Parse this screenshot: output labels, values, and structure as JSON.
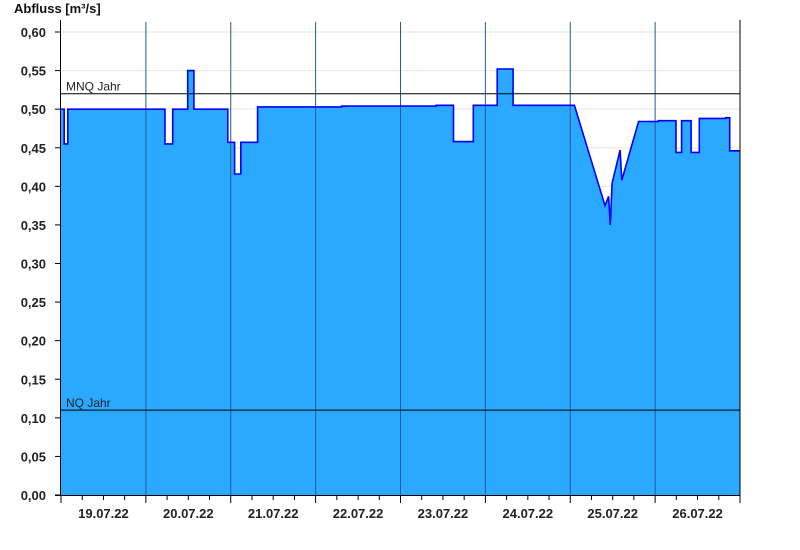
{
  "chart_data": {
    "type": "area",
    "title": "",
    "ylabel": "Abfluss [m³/s]",
    "xlabel": "",
    "ylim": [
      0,
      0.6
    ],
    "xlim": [
      "19.07.22 00:00",
      "27.07.22 00:00"
    ],
    "yticks": [
      "0,00",
      "0,05",
      "0,10",
      "0,15",
      "0,20",
      "0,25",
      "0,30",
      "0,35",
      "0,40",
      "0,45",
      "0,50",
      "0,55",
      "0,60"
    ],
    "xticks": [
      "19.07.22",
      "20.07.22",
      "21.07.22",
      "22.07.22",
      "23.07.22",
      "24.07.22",
      "25.07.22",
      "26.07.22"
    ],
    "grid": true,
    "colors": {
      "fill": "#2ba8ff",
      "line": "#0000ff",
      "day_lines": "#1f5f8f",
      "reference": "#000000",
      "grid": "#e6e6e6"
    },
    "reference_lines": [
      {
        "label": "MNQ Jahr",
        "value": 0.52
      },
      {
        "label": "NQ Jahr",
        "value": 0.11
      }
    ],
    "series": [
      {
        "points": [
          [
            "19.07.22 00:00",
            0.5
          ],
          [
            "19.07.22 00:55",
            0.5
          ],
          [
            "19.07.22 00:55",
            0.455
          ],
          [
            "19.07.22 01:55",
            0.455
          ],
          [
            "19.07.22 01:55",
            0.5
          ],
          [
            "20.07.22 05:25",
            0.5
          ],
          [
            "20.07.22 05:25",
            0.455
          ],
          [
            "20.07.22 07:35",
            0.455
          ],
          [
            "20.07.22 07:35",
            0.5
          ],
          [
            "20.07.22 11:50",
            0.5
          ],
          [
            "20.07.22 11:50",
            0.55
          ],
          [
            "20.07.22 13:35",
            0.55
          ],
          [
            "20.07.22 13:35",
            0.5
          ],
          [
            "20.07.22 23:10",
            0.5
          ],
          [
            "20.07.22 23:10",
            0.457
          ],
          [
            "21.07.22 01:05",
            0.457
          ],
          [
            "21.07.22 01:05",
            0.416
          ],
          [
            "21.07.22 02:50",
            0.416
          ],
          [
            "21.07.22 02:50",
            0.457
          ],
          [
            "21.07.22 07:35",
            0.457
          ],
          [
            "21.07.22 07:35",
            0.503
          ],
          [
            "22.07.22 07:20",
            0.503
          ],
          [
            "22.07.22 07:20",
            0.504
          ],
          [
            "23.07.22 10:05",
            0.504
          ],
          [
            "23.07.22 10:05",
            0.505
          ],
          [
            "23.07.22 15:00",
            0.505
          ],
          [
            "23.07.22 15:00",
            0.458
          ],
          [
            "23.07.22 20:35",
            0.458
          ],
          [
            "23.07.22 20:35",
            0.505
          ],
          [
            "24.07.22 03:20",
            0.505
          ],
          [
            "24.07.22 03:20",
            0.552
          ],
          [
            "24.07.22 07:50",
            0.552
          ],
          [
            "24.07.22 07:50",
            0.505
          ],
          [
            "25.07.22 01:10",
            0.505
          ],
          [
            "25.07.22 09:50",
            0.375
          ],
          [
            "25.07.22 10:50",
            0.387
          ],
          [
            "25.07.22 11:20",
            0.35
          ],
          [
            "25.07.22 11:50",
            0.404
          ],
          [
            "25.07.22 14:05",
            0.447
          ],
          [
            "25.07.22 14:35",
            0.408
          ],
          [
            "25.07.22 19:20",
            0.484
          ],
          [
            "26.07.22 00:55",
            0.484
          ],
          [
            "26.07.22 00:55",
            0.485
          ],
          [
            "26.07.22 05:55",
            0.485
          ],
          [
            "26.07.22 05:55",
            0.444
          ],
          [
            "26.07.22 07:30",
            0.444
          ],
          [
            "26.07.22 07:30",
            0.485
          ],
          [
            "26.07.22 10:10",
            0.485
          ],
          [
            "26.07.22 10:10",
            0.444
          ],
          [
            "26.07.22 12:30",
            0.444
          ],
          [
            "26.07.22 12:30",
            0.488
          ],
          [
            "26.07.22 20:00",
            0.488
          ],
          [
            "26.07.22 20:00",
            0.489
          ],
          [
            "26.07.22 21:05",
            0.489
          ],
          [
            "26.07.22 21:05",
            0.446
          ],
          [
            "27.07.22 00:00",
            0.446
          ]
        ]
      }
    ]
  }
}
